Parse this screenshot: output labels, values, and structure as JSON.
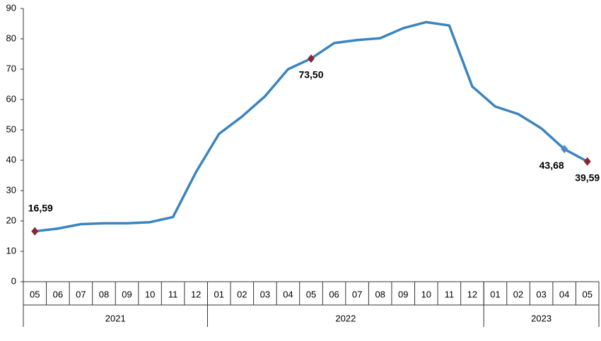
{
  "chart_data": {
    "type": "line",
    "categories": [
      "05",
      "06",
      "07",
      "08",
      "09",
      "10",
      "11",
      "12",
      "01",
      "02",
      "03",
      "04",
      "05",
      "06",
      "07",
      "08",
      "09",
      "10",
      "11",
      "12",
      "01",
      "02",
      "03",
      "04",
      "05"
    ],
    "groups": [
      {
        "label": "2021",
        "count": 8
      },
      {
        "label": "2022",
        "count": 12
      },
      {
        "label": "2023",
        "count": 5
      }
    ],
    "series": [
      {
        "color": "#3a84bf",
        "values": [
          16.59,
          17.5,
          18.95,
          19.25,
          19.25,
          19.6,
          21.3,
          36.1,
          48.7,
          54.4,
          61.1,
          70.0,
          73.5,
          78.6,
          79.6,
          80.2,
          83.5,
          85.5,
          84.4,
          64.3,
          57.7,
          55.2,
          50.5,
          43.68,
          39.59
        ],
        "value_labels": [
          "16,59",
          null,
          null,
          null,
          null,
          null,
          null,
          null,
          null,
          null,
          null,
          null,
          "73,50",
          null,
          null,
          null,
          null,
          null,
          null,
          null,
          null,
          null,
          null,
          "43,68",
          "39,59"
        ],
        "marker_colors": [
          "#8c2433",
          null,
          null,
          null,
          null,
          null,
          null,
          null,
          null,
          null,
          null,
          null,
          "#8c2433",
          null,
          null,
          null,
          null,
          null,
          null,
          null,
          null,
          null,
          null,
          "#4a8cc8",
          "#8c2433"
        ]
      }
    ],
    "ylim": [
      0,
      90
    ],
    "yticks": [
      0,
      10,
      20,
      30,
      40,
      50,
      60,
      70,
      80,
      90
    ]
  }
}
